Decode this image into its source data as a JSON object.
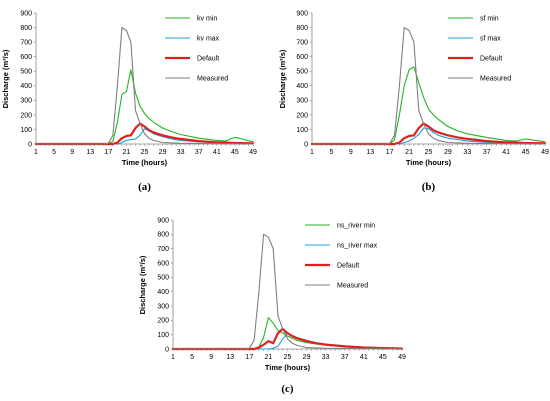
{
  "chart_data": [
    {
      "type": "line",
      "panel_label": "(a)",
      "xlabel": "Time (hours)",
      "ylabel": "Discharge (m³/s)",
      "ylim": [
        0,
        900
      ],
      "yticks": [
        0,
        100,
        200,
        300,
        400,
        500,
        600,
        700,
        800,
        900
      ],
      "xlim": [
        1,
        49
      ],
      "xticks": [
        1,
        5,
        9,
        13,
        17,
        21,
        25,
        29,
        33,
        37,
        41,
        45,
        49
      ],
      "grid": false,
      "legend_position": "top-right",
      "series": [
        {
          "name": "kv min",
          "color": "#22b522",
          "width": 1.1,
          "x": [
            1,
            17,
            18,
            19,
            20,
            21,
            22,
            23,
            24,
            25,
            26,
            27,
            29,
            31,
            33,
            37,
            41,
            43,
            44,
            45,
            46,
            47,
            49
          ],
          "y": [
            0,
            0,
            20,
            150,
            340,
            360,
            510,
            350,
            260,
            210,
            175,
            150,
            110,
            85,
            65,
            40,
            25,
            20,
            35,
            45,
            40,
            30,
            15
          ]
        },
        {
          "name": "kv max",
          "color": "#1ba1e2",
          "width": 1.1,
          "x": [
            1,
            19,
            20,
            21,
            22,
            23,
            24,
            25,
            26,
            27,
            29,
            31,
            33,
            37,
            41,
            45,
            49
          ],
          "y": [
            0,
            0,
            10,
            25,
            30,
            35,
            60,
            105,
            90,
            70,
            50,
            35,
            25,
            15,
            8,
            5,
            3
          ]
        },
        {
          "name": "Default",
          "color": "#e0201b",
          "width": 2.2,
          "x": [
            1,
            18,
            19,
            20,
            21,
            22,
            23,
            24,
            25,
            26,
            27,
            29,
            31,
            33,
            37,
            41,
            45,
            49
          ],
          "y": [
            0,
            0,
            10,
            40,
            55,
            60,
            110,
            140,
            120,
            95,
            80,
            60,
            45,
            35,
            20,
            12,
            7,
            4
          ]
        },
        {
          "name": "Measured",
          "color": "#7f7f7f",
          "width": 1.1,
          "x": [
            1,
            16,
            17,
            18,
            19,
            20,
            21,
            22,
            23,
            24,
            25,
            26,
            27,
            29,
            33,
            41,
            49
          ],
          "y": [
            0,
            0,
            5,
            60,
            400,
            800,
            780,
            700,
            230,
            140,
            70,
            40,
            25,
            10,
            5,
            2,
            0
          ]
        }
      ]
    },
    {
      "type": "line",
      "panel_label": "(b)",
      "xlabel": "Time (hours)",
      "ylabel": "Discharge (m³/s)",
      "ylim": [
        0,
        900
      ],
      "yticks": [
        0,
        100,
        200,
        300,
        400,
        500,
        600,
        700,
        800,
        900
      ],
      "xlim": [
        1,
        49
      ],
      "xticks": [
        1,
        5,
        9,
        13,
        17,
        21,
        25,
        29,
        33,
        37,
        41,
        45,
        49
      ],
      "grid": false,
      "legend_position": "top-right",
      "series": [
        {
          "name": "sf min",
          "color": "#22b522",
          "width": 1.1,
          "x": [
            1,
            17,
            18,
            19,
            20,
            21,
            22,
            23,
            24,
            25,
            26,
            27,
            29,
            31,
            33,
            37,
            41,
            43,
            45,
            46,
            47,
            49
          ],
          "y": [
            0,
            0,
            30,
            200,
            400,
            510,
            530,
            420,
            320,
            240,
            200,
            170,
            120,
            90,
            70,
            45,
            25,
            20,
            35,
            30,
            25,
            15
          ]
        },
        {
          "name": "sf max",
          "color": "#1ba1e2",
          "width": 1.1,
          "x": [
            1,
            19,
            20,
            21,
            22,
            23,
            24,
            25,
            26,
            27,
            29,
            31,
            33,
            37,
            41,
            45,
            49
          ],
          "y": [
            0,
            0,
            10,
            20,
            40,
            65,
            110,
            105,
            80,
            60,
            40,
            30,
            20,
            12,
            6,
            3,
            2
          ]
        },
        {
          "name": "Default",
          "color": "#e0201b",
          "width": 2.2,
          "x": [
            1,
            18,
            19,
            20,
            21,
            22,
            23,
            24,
            25,
            26,
            27,
            29,
            31,
            33,
            37,
            41,
            45,
            49
          ],
          "y": [
            0,
            0,
            10,
            40,
            55,
            60,
            110,
            140,
            120,
            95,
            80,
            60,
            45,
            35,
            20,
            12,
            7,
            4
          ]
        },
        {
          "name": "Measured",
          "color": "#7f7f7f",
          "width": 1.1,
          "x": [
            1,
            16,
            17,
            18,
            19,
            20,
            21,
            22,
            23,
            24,
            25,
            26,
            27,
            29,
            33,
            41,
            49
          ],
          "y": [
            0,
            0,
            5,
            60,
            400,
            800,
            780,
            700,
            230,
            140,
            70,
            40,
            25,
            10,
            5,
            2,
            0
          ]
        }
      ]
    },
    {
      "type": "line",
      "panel_label": "(c)",
      "xlabel": "Time (hours)",
      "ylabel": "Discharge (m³/s)",
      "ylim": [
        0,
        900
      ],
      "yticks": [
        0,
        100,
        200,
        300,
        400,
        500,
        600,
        700,
        800,
        900
      ],
      "xlim": [
        1,
        49
      ],
      "xticks": [
        1,
        5,
        9,
        13,
        17,
        21,
        25,
        29,
        33,
        37,
        41,
        45,
        49
      ],
      "grid": false,
      "legend_position": "top-right",
      "series": [
        {
          "name": "ns_river min",
          "color": "#22b522",
          "width": 1.1,
          "x": [
            1,
            18,
            19,
            20,
            21,
            22,
            23,
            24,
            25,
            26,
            27,
            29,
            31,
            33,
            37,
            41,
            45,
            49
          ],
          "y": [
            0,
            0,
            15,
            80,
            220,
            180,
            130,
            110,
            90,
            75,
            60,
            45,
            35,
            28,
            18,
            12,
            8,
            5
          ]
        },
        {
          "name": "ns_river max",
          "color": "#1ba1e2",
          "width": 1.1,
          "x": [
            1,
            21,
            22,
            23,
            24,
            25,
            26,
            27,
            29,
            31,
            33,
            37,
            41,
            45,
            49
          ],
          "y": [
            0,
            0,
            5,
            20,
            70,
            110,
            95,
            80,
            60,
            45,
            35,
            22,
            14,
            9,
            6
          ]
        },
        {
          "name": "Default",
          "color": "#e0201b",
          "width": 2.2,
          "x": [
            1,
            18,
            19,
            20,
            21,
            22,
            23,
            24,
            25,
            26,
            27,
            29,
            31,
            33,
            37,
            41,
            45,
            49
          ],
          "y": [
            0,
            0,
            10,
            30,
            55,
            40,
            110,
            140,
            110,
            90,
            75,
            55,
            40,
            30,
            18,
            10,
            6,
            3
          ]
        },
        {
          "name": "Measured",
          "color": "#7f7f7f",
          "width": 1.1,
          "x": [
            1,
            16,
            17,
            18,
            19,
            20,
            21,
            22,
            23,
            24,
            25,
            26,
            27,
            29,
            33,
            41,
            49
          ],
          "y": [
            0,
            0,
            5,
            60,
            400,
            800,
            780,
            700,
            230,
            140,
            70,
            40,
            25,
            10,
            5,
            2,
            0
          ]
        }
      ]
    }
  ]
}
